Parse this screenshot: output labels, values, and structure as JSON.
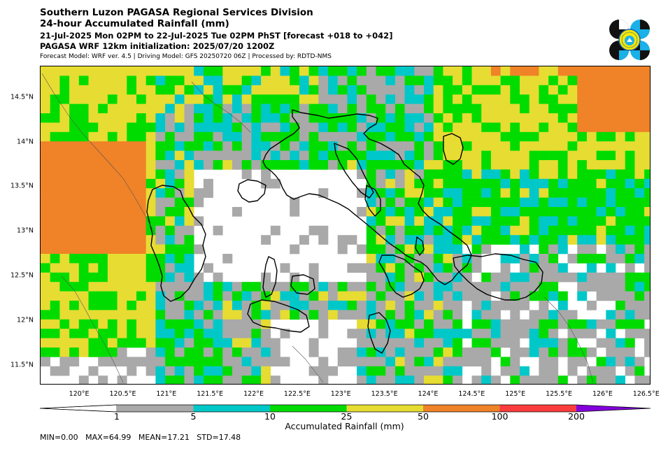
{
  "header": {
    "line1": "Southern Luzon PAGASA Regional Services Division",
    "line2": "24-hour Accumulated Rainfall (mm)",
    "line3": "21-Jul-2025 Mon 02PM to 22-Jul-2025 Tue 02PM PhST [forecast +018 to +042]",
    "line4": "PAGASA WRF 12km initialization: 2025/07/20 1200Z",
    "line5": "Forecast Model: WRF ver. 4.5 | Driving Model: GFS 20250720 06Z | Processed by: RDTD-NMS"
  },
  "map": {
    "lon_range": [
      119.55,
      126.55
    ],
    "lat_range": [
      11.28,
      14.85
    ],
    "lat_ticks": [
      "14.5°N",
      "14°N",
      "13.5°N",
      "13°N",
      "12.5°N",
      "12°N",
      "11.5°N"
    ],
    "lat_values": [
      14.5,
      14.0,
      13.5,
      13.0,
      12.5,
      12.0,
      11.5
    ],
    "lon_ticks": [
      "120°E",
      "120.5°E",
      "121°E",
      "121.5°E",
      "122°E",
      "122.5°E",
      "123°E",
      "123.5°E",
      "124°E",
      "124.5°E",
      "125°E",
      "125.5°E",
      "126°E",
      "126.5°E"
    ],
    "lon_values": [
      120.0,
      120.5,
      121.0,
      121.5,
      122.0,
      122.5,
      123.0,
      123.5,
      124.0,
      124.5,
      125.0,
      125.5,
      126.0,
      126.5
    ]
  },
  "colorbar": {
    "title": "Accumulated Rainfall (mm)",
    "levels": [
      "1",
      "5",
      "10",
      "25",
      "50",
      "100",
      "200"
    ],
    "colors": [
      "#ffffff",
      "#a9a9a9",
      "#00c8c8",
      "#00dc00",
      "#e6dc32",
      "#f08228",
      "#fa3c3c",
      "#8200dc"
    ]
  },
  "stats": "MIN=0.00   MAX=64.99   MEAN=17.21   STD=17.48",
  "logo": {
    "icon": "pagasa-seal-icon",
    "colors": [
      "#111111",
      "#1ab0e8",
      "#f5e800",
      "#e23b3b"
    ]
  }
}
